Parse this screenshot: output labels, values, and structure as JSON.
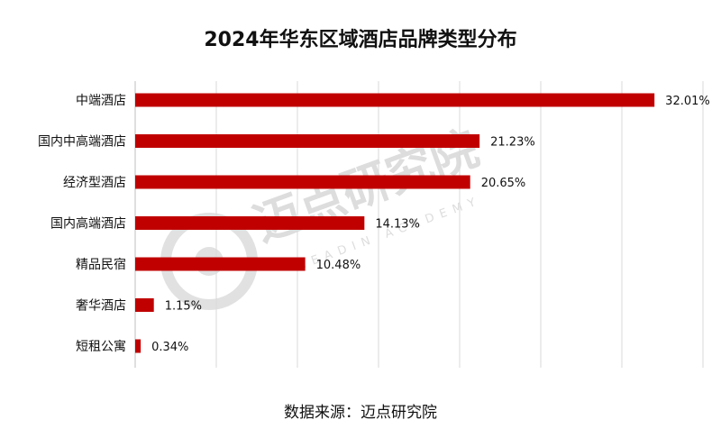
{
  "chart_data": {
    "type": "bar",
    "orientation": "horizontal",
    "title": "2024年华东区域酒店品牌类型分布",
    "categories": [
      "中端酒店",
      "国内中高端酒店",
      "经济型酒店",
      "国内高端酒店",
      "精品民宿",
      "奢华酒店",
      "短租公寓"
    ],
    "values": [
      32.01,
      21.23,
      20.65,
      14.13,
      10.48,
      1.15,
      0.34
    ],
    "value_labels": [
      "32.01%",
      "21.23%",
      "20.65%",
      "14.13%",
      "10.48%",
      "1.15%",
      "0.34%"
    ],
    "xlim": [
      0,
      35
    ],
    "grid": true,
    "legend": "none",
    "bar_color": "#c00000"
  },
  "source_note": "数据来源：迈点研究院",
  "watermark": {
    "text": "迈点研究院",
    "subtext": "MEADIN ACADEMY"
  }
}
